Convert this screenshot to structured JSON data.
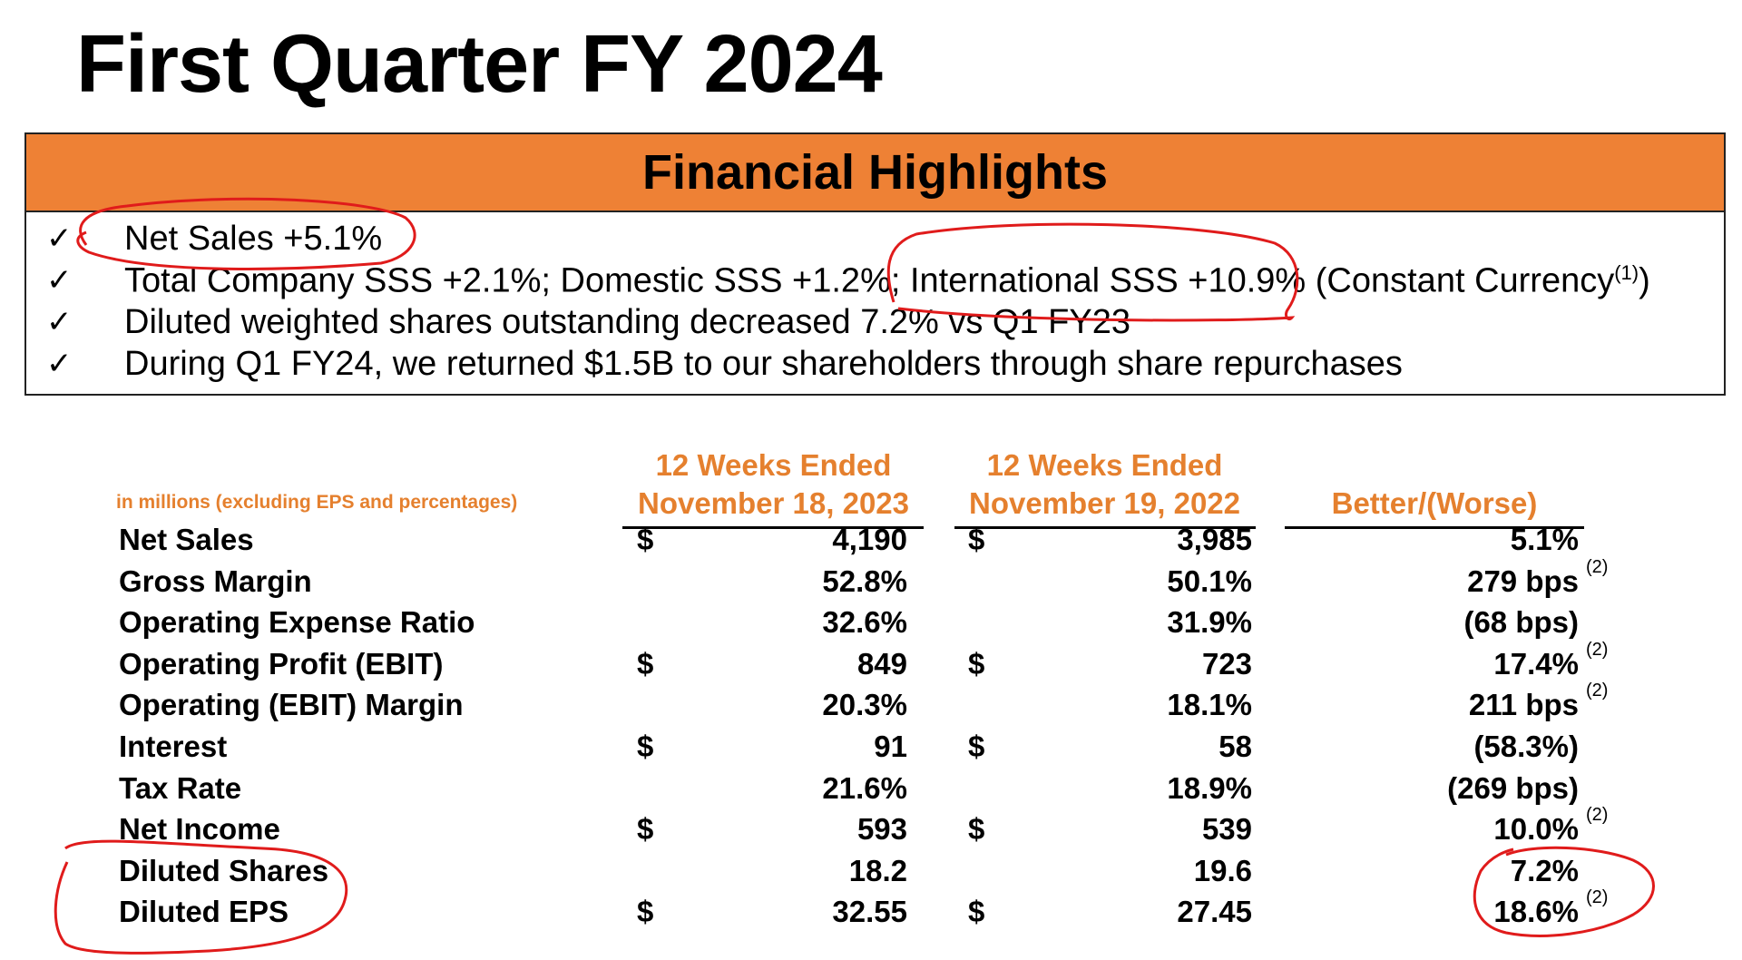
{
  "title": "First Quarter FY 2024",
  "highlights": {
    "header": "Financial Highlights",
    "check_glyph": "✓",
    "items": [
      {
        "text": "Net Sales +5.1%"
      },
      {
        "text": "Total Company SSS +2.1%; Domestic SSS +1.2%; International SSS +10.9% (Constant Currency",
        "sup": "(1)",
        "tail": ")"
      },
      {
        "text": "Diluted weighted shares outstanding decreased 7.2% vs Q1 FY23"
      },
      {
        "text": "During Q1 FY24, we returned $1.5B to our shareholders through share repurchases"
      }
    ]
  },
  "table": {
    "units_note": "in millions (excluding EPS and percentages)",
    "col1_header": [
      "12 Weeks Ended",
      "November 18, 2023"
    ],
    "col2_header": [
      "12 Weeks Ended",
      "November 19, 2022"
    ],
    "col3_header": "Better/(Worse)",
    "rows": [
      {
        "label": "Net Sales",
        "d1": "$",
        "v1": "4,190",
        "d2": "$",
        "v2": "3,985",
        "v3": "5.1%",
        "fn": ""
      },
      {
        "label": "Gross Margin",
        "d1": "",
        "v1": "52.8%",
        "d2": "",
        "v2": "50.1%",
        "v3": "279 bps",
        "fn": "(2)"
      },
      {
        "label": "Operating Expense Ratio",
        "d1": "",
        "v1": "32.6%",
        "d2": "",
        "v2": "31.9%",
        "v3": "(68 bps)",
        "fn": ""
      },
      {
        "label": "Operating Profit (EBIT)",
        "d1": "$",
        "v1": "849",
        "d2": "$",
        "v2": "723",
        "v3": "17.4%",
        "fn": "(2)"
      },
      {
        "label": "Operating (EBIT) Margin",
        "d1": "",
        "v1": "20.3%",
        "d2": "",
        "v2": "18.1%",
        "v3": "211 bps",
        "fn": "(2)"
      },
      {
        "label": "Interest",
        "d1": "$",
        "v1": "91",
        "d2": "$",
        "v2": "58",
        "v3": "(58.3%)",
        "fn": ""
      },
      {
        "label": "Tax Rate",
        "d1": "",
        "v1": "21.6%",
        "d2": "",
        "v2": "18.9%",
        "v3": "(269 bps)",
        "fn": ""
      },
      {
        "label": "Net Income",
        "d1": "$",
        "v1": "593",
        "d2": "$",
        "v2": "539",
        "v3": "10.0%",
        "fn": "(2)"
      },
      {
        "label": "Diluted Shares",
        "d1": "",
        "v1": "18.2",
        "d2": "",
        "v2": "19.6",
        "v3": "7.2%",
        "fn": ""
      },
      {
        "label": "Diluted EPS",
        "d1": "$",
        "v1": "32.55",
        "d2": "$",
        "v2": "27.45",
        "v3": "18.6%",
        "fn": "(2)"
      }
    ]
  },
  "colors": {
    "header_orange": "#ee8135",
    "accent_orange_text": "#e5802e",
    "annotation_red": "#e01b1b"
  }
}
